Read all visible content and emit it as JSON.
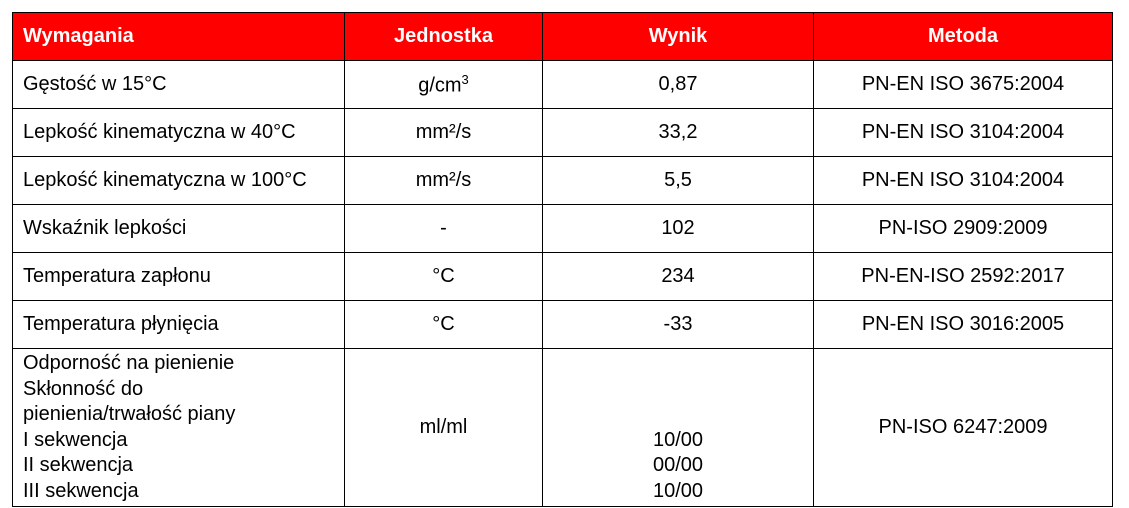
{
  "header": {
    "col1": "Wymagania",
    "col2": "Jednostka",
    "col3": "Wynik",
    "col4": "Metoda"
  },
  "rows": [
    {
      "req": "Gęstość w 15°C",
      "unit": "g/cm",
      "unit_sup": "3",
      "result": "0,87",
      "method": "PN-EN ISO 3675:2004"
    },
    {
      "req": "Lepkość kinematyczna w 40°C",
      "unit": "mm²/s",
      "result": "33,2",
      "method": "PN-EN ISO 3104:2004"
    },
    {
      "req": "Lepkość kinematyczna w 100°C",
      "unit": "mm²/s",
      "result": "5,5",
      "method": "PN-EN ISO 3104:2004"
    },
    {
      "req": "Wskaźnik lepkości",
      "unit": "-",
      "result": "102",
      "method": "PN-ISO 2909:2009"
    },
    {
      "req": "Temperatura zapłonu",
      "unit": "°C",
      "result": "234",
      "method": "PN-EN-ISO 2592:2017"
    },
    {
      "req": "Temperatura płynięcia",
      "unit": "°C",
      "result": "-33",
      "method": "PN-EN ISO 3016:2005"
    }
  ],
  "foam": {
    "lines": [
      "Odporność na pienienie",
      "Skłonność do",
      "pienienia/trwałość piany",
      "I sekwencja",
      "II sekwencja",
      "III sekwencja"
    ],
    "unit": "ml/ml",
    "results": [
      "10/00",
      "00/00",
      "10/00"
    ],
    "method": "PN-ISO 6247:2009"
  }
}
